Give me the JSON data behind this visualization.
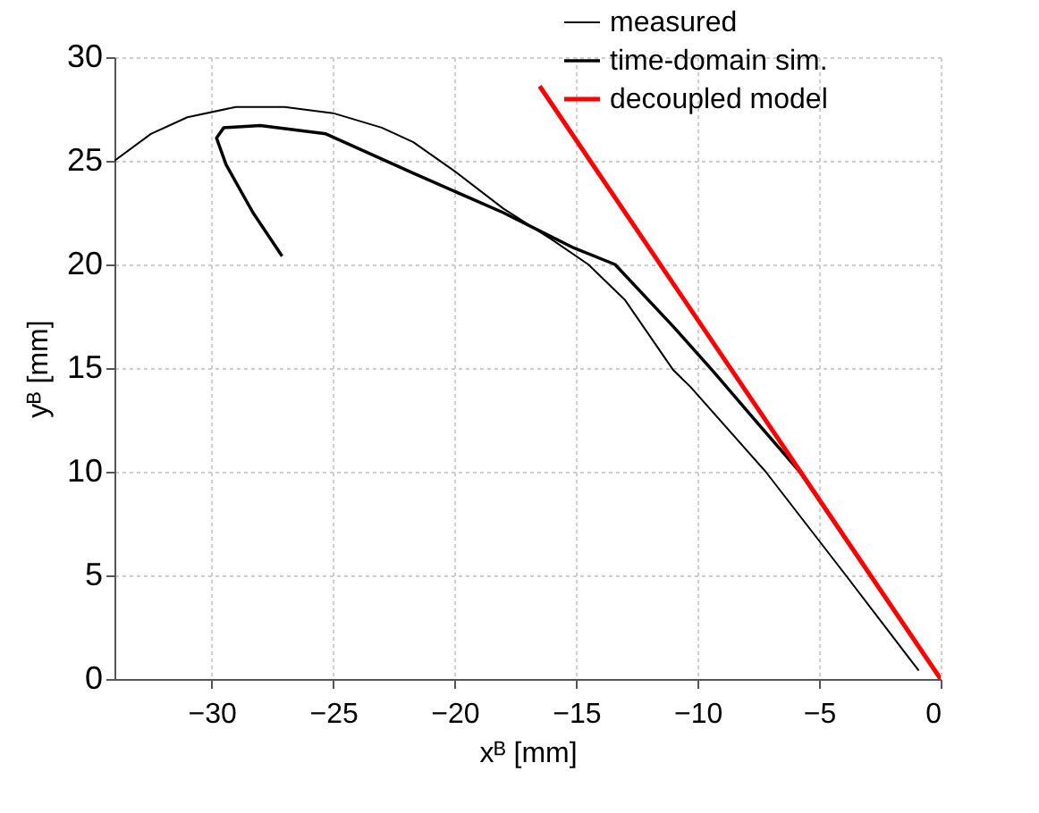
{
  "chart_data": {
    "type": "line",
    "xlabel": "xᴮ [mm]",
    "ylabel": "yᴮ [mm]",
    "xlim": [
      -34,
      0
    ],
    "xticks": [
      -30,
      -25,
      -20,
      -15,
      -10,
      -5,
      0
    ],
    "ylim": [
      0,
      30
    ],
    "yticks": [
      0,
      5,
      10,
      15,
      20,
      25,
      30
    ],
    "grid": true,
    "legend": "top right",
    "line_style": "solid",
    "series": [
      {
        "name": "measured",
        "color": "#000000",
        "x": [
          -34,
          -32.5,
          -31,
          -29,
          -27,
          -25,
          -23,
          -21.7,
          -20,
          -18,
          -16,
          -14.5,
          -13,
          -11,
          -10.3,
          -7.2,
          -3.9,
          -0.9
        ],
        "values": [
          25,
          26.3,
          27.1,
          27.6,
          27.6,
          27.3,
          26.6,
          25.9,
          24.5,
          22.7,
          21.2,
          20,
          18.3,
          14.9,
          14.1,
          10,
          5,
          0.4
        ]
      },
      {
        "name": "time-domain sim.",
        "color": "#000000",
        "x": [
          -27.1,
          -28.3,
          -29.4,
          -29.8,
          -29.5,
          -28,
          -25.3,
          -21.7,
          -18,
          -15.1,
          -13.4,
          -11,
          -9.4,
          -7.5,
          -5.8,
          0
        ],
        "values": [
          20.4,
          22.5,
          24.8,
          26.1,
          26.6,
          26.7,
          26.3,
          24.4,
          22.5,
          20.8,
          20,
          17,
          14.9,
          12.3,
          10,
          0
        ]
      },
      {
        "name": "decoupled model",
        "color": "#ff0000",
        "x": [
          -16.5,
          0
        ],
        "values": [
          28.6,
          0
        ]
      }
    ]
  }
}
